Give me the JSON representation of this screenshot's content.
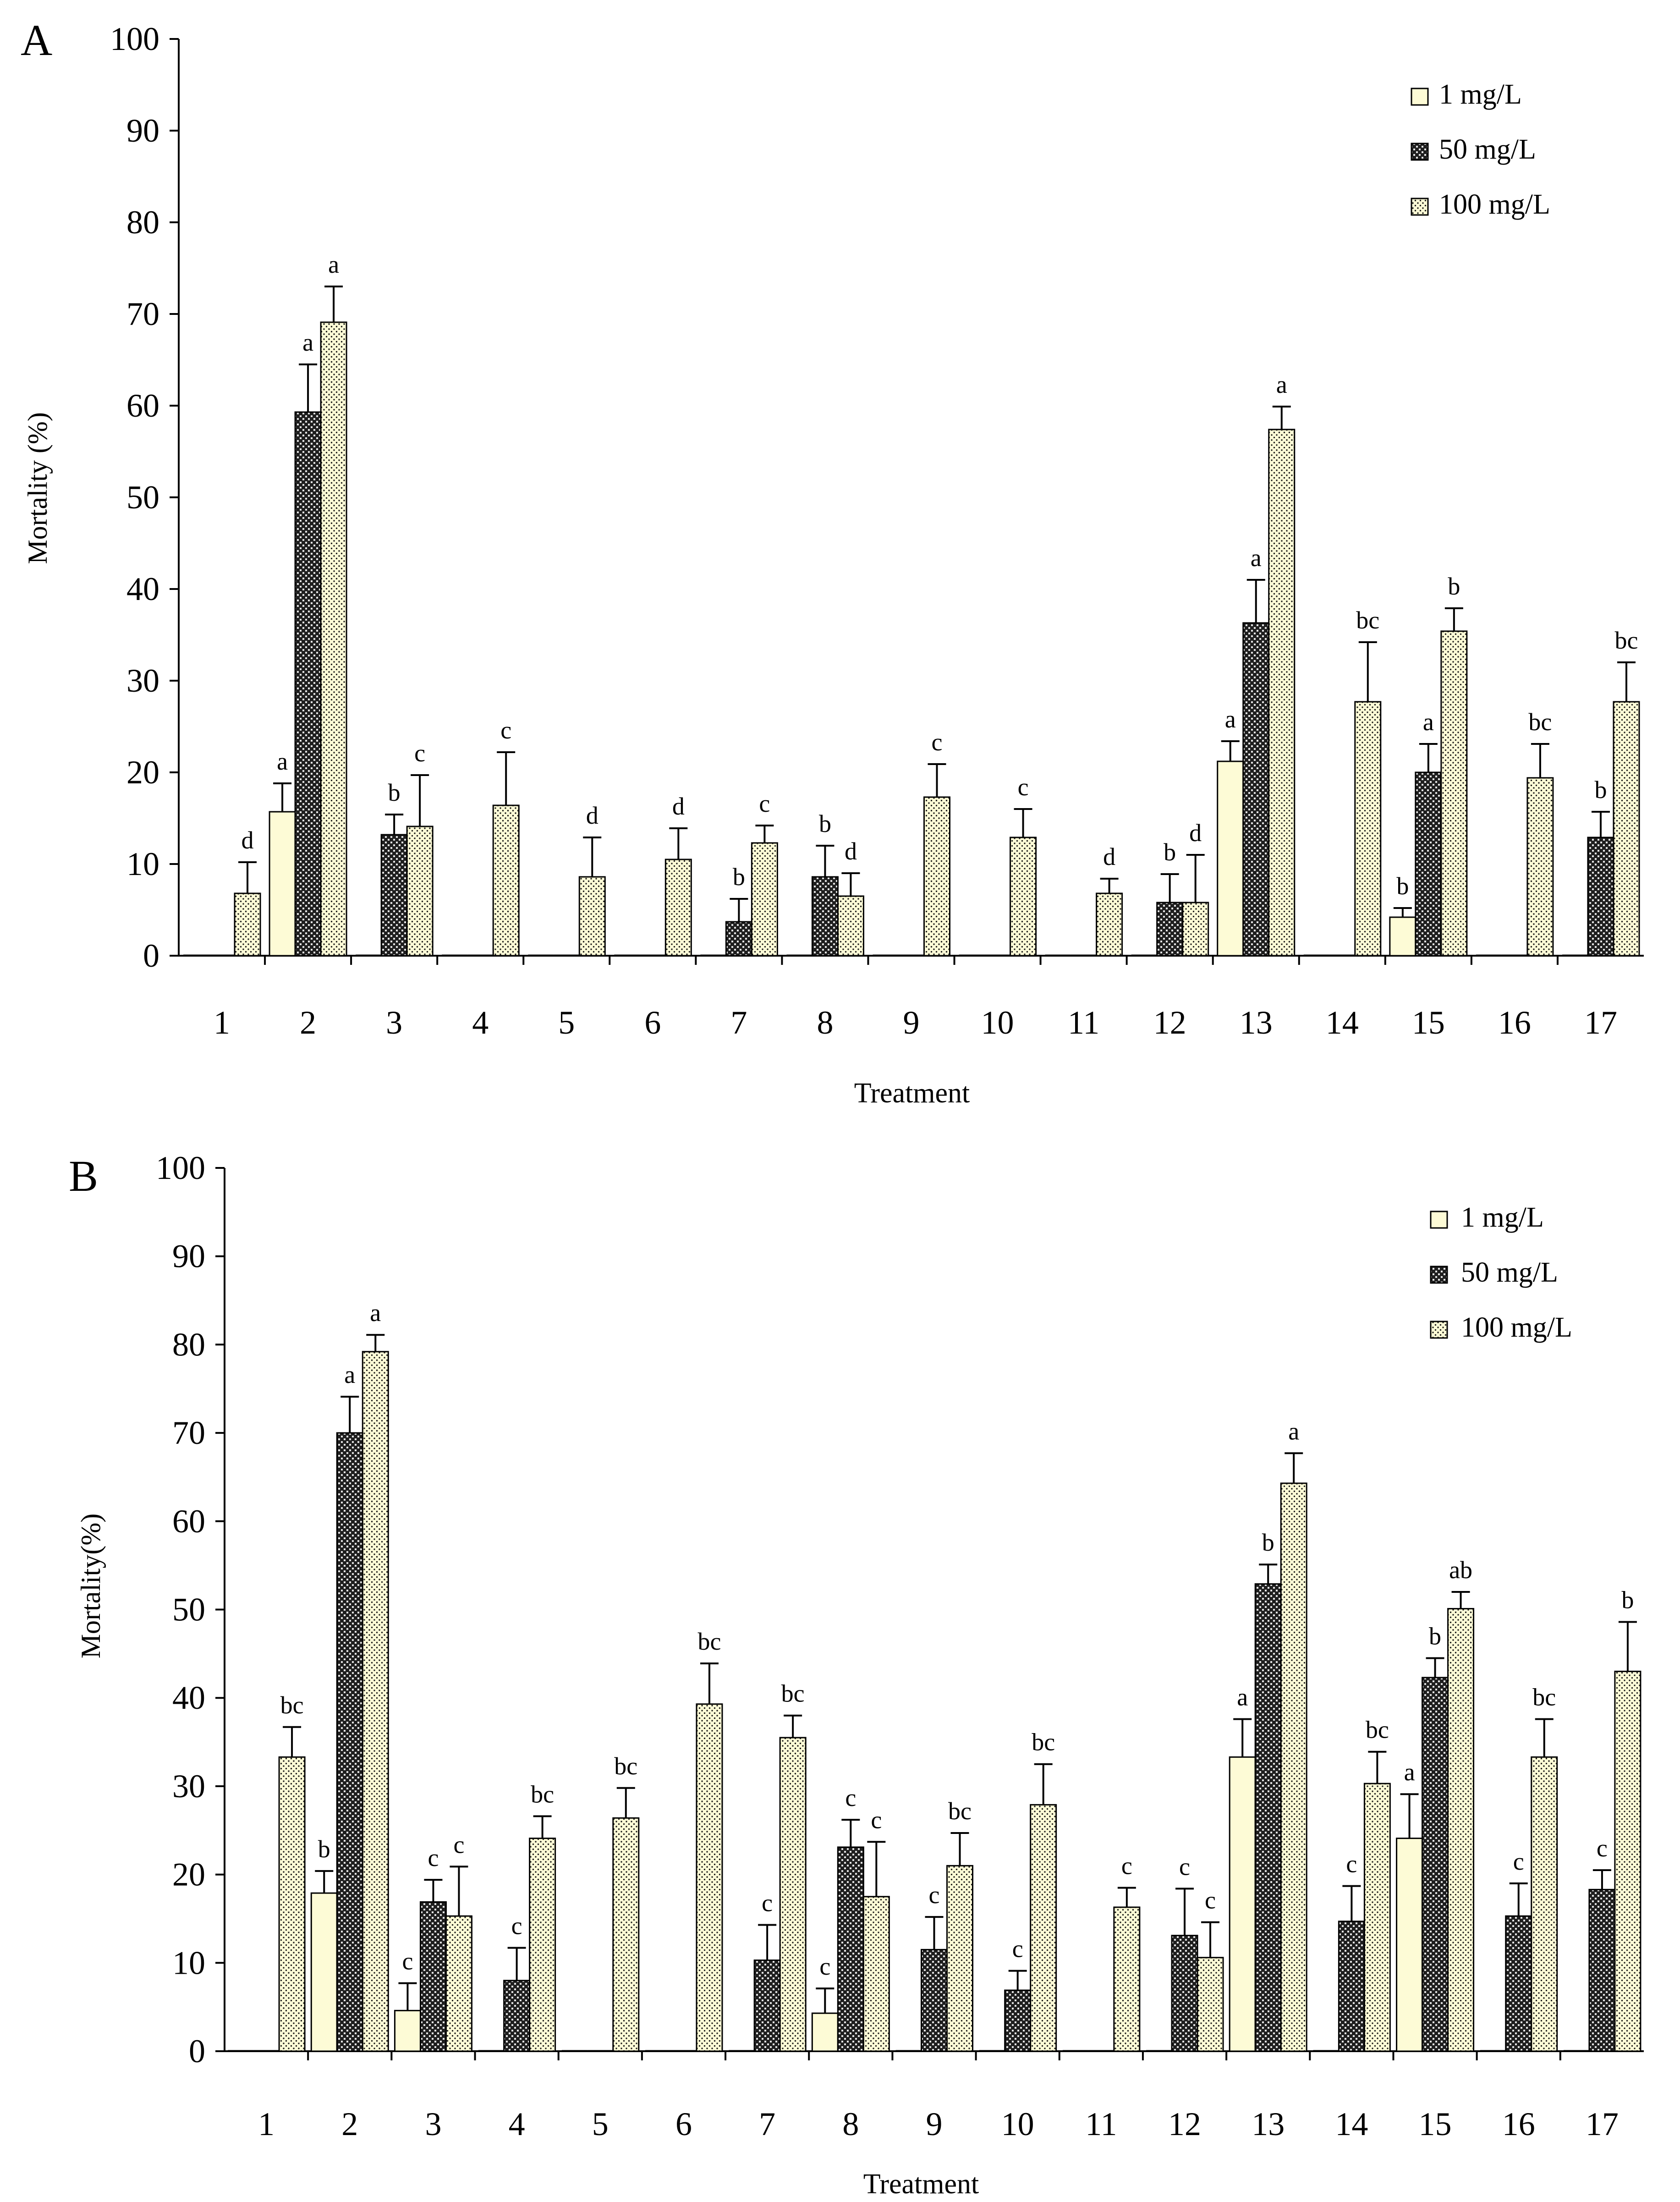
{
  "chart_data": [
    {
      "type": "bar",
      "panel_label": "A",
      "xlabel": "Treatment",
      "ylabel": "Mortality (%)",
      "ylim": [
        0,
        100
      ],
      "yticks": [
        0,
        10,
        20,
        30,
        40,
        50,
        60,
        70,
        80,
        90,
        100
      ],
      "categories": [
        "1",
        "2",
        "3",
        "4",
        "5",
        "6",
        "7",
        "8",
        "9",
        "10",
        "11",
        "12",
        "13",
        "14",
        "15",
        "16",
        "17"
      ],
      "legend": [
        "1 mg/L",
        "50 mg/L",
        "100 mg/L"
      ],
      "legend_position": "top-right",
      "series": [
        {
          "name": "1 mg/L",
          "values": [
            0,
            15.7,
            0,
            0,
            0,
            0,
            0,
            0,
            0,
            0,
            0,
            0,
            21.2,
            0,
            4.2,
            0,
            0
          ],
          "errors": [
            0,
            3.1,
            0,
            0,
            0,
            0,
            0,
            0,
            0,
            0,
            0,
            0,
            2.2,
            0,
            1.0,
            0,
            0
          ],
          "labels": [
            "",
            "a",
            "",
            "",
            "",
            "",
            "",
            "",
            "",
            "",
            "",
            "",
            "a",
            "",
            "b",
            "",
            ""
          ]
        },
        {
          "name": "50 mg/L",
          "values": [
            0,
            59.3,
            13.2,
            0,
            0,
            0,
            3.7,
            8.6,
            0,
            0,
            0,
            5.8,
            36.3,
            0,
            20.0,
            0,
            12.9
          ],
          "errors": [
            0,
            5.2,
            2.2,
            0,
            0,
            0,
            2.5,
            3.4,
            0,
            0,
            0,
            3.1,
            4.7,
            0,
            3.1,
            0,
            2.8
          ],
          "labels": [
            "",
            "a",
            "b",
            "",
            "",
            "",
            "b",
            "b",
            "",
            "",
            "",
            "b",
            "a",
            "",
            "a",
            "",
            "b"
          ]
        },
        {
          "name": "100 mg/L",
          "values": [
            6.8,
            69.1,
            14.1,
            16.4,
            8.6,
            10.5,
            12.3,
            6.5,
            17.3,
            12.9,
            6.8,
            5.8,
            57.4,
            27.7,
            35.4,
            19.4,
            27.7
          ],
          "errors": [
            3.4,
            3.9,
            5.6,
            5.8,
            4.3,
            3.4,
            1.9,
            2.5,
            3.6,
            3.1,
            1.6,
            5.2,
            2.5,
            6.5,
            2.5,
            3.7,
            4.3
          ],
          "labels": [
            "d",
            "a",
            "c",
            "c",
            "d",
            "d",
            "c",
            "d",
            "c",
            "c",
            "d",
            "d",
            "a",
            "bc",
            "b",
            "bc",
            "bc"
          ]
        }
      ]
    },
    {
      "type": "bar",
      "panel_label": "B",
      "xlabel": "Treatment",
      "ylabel": "Mortality(%)",
      "ylim": [
        0,
        100
      ],
      "yticks": [
        0,
        10,
        20,
        30,
        40,
        50,
        60,
        70,
        80,
        90,
        100
      ],
      "categories": [
        "1",
        "2",
        "3",
        "4",
        "5",
        "6",
        "7",
        "8",
        "9",
        "10",
        "11",
        "12",
        "13",
        "14",
        "15",
        "16",
        "17"
      ],
      "legend": [
        "1 mg/L",
        "50 mg/L",
        "100 mg/L"
      ],
      "legend_position": "top-right",
      "series": [
        {
          "name": "1 mg/L",
          "values": [
            0,
            17.9,
            4.6,
            0,
            0,
            0,
            0,
            4.3,
            0,
            0,
            0,
            0,
            33.3,
            0,
            24.1,
            0,
            0
          ],
          "errors": [
            0,
            2.5,
            3.1,
            0,
            0,
            0,
            0,
            2.8,
            0,
            0,
            0,
            0,
            4.3,
            0,
            5.0,
            0,
            0
          ],
          "labels": [
            "",
            "b",
            "c",
            "",
            "",
            "",
            "",
            "c",
            "",
            "",
            "",
            "",
            "a",
            "",
            "a",
            "",
            ""
          ]
        },
        {
          "name": "50 mg/L",
          "values": [
            0,
            70.0,
            16.9,
            8.0,
            0,
            0,
            10.3,
            23.1,
            11.5,
            6.9,
            0,
            13.1,
            52.9,
            14.7,
            42.3,
            15.3,
            18.3
          ],
          "errors": [
            0,
            4.1,
            2.5,
            3.7,
            0,
            0,
            4.0,
            3.1,
            3.7,
            2.2,
            0,
            5.3,
            2.2,
            4.0,
            2.2,
            3.7,
            2.2
          ],
          "labels": [
            "",
            "a",
            "c",
            "c",
            "",
            "",
            "c",
            "c",
            "c",
            "c",
            "",
            "c",
            "b",
            "c",
            "b",
            "c",
            "c"
          ]
        },
        {
          "name": "100 mg/L",
          "values": [
            33.3,
            79.2,
            15.3,
            24.1,
            26.4,
            39.3,
            35.5,
            17.5,
            21.0,
            27.9,
            16.3,
            10.6,
            64.3,
            30.3,
            50.1,
            33.3,
            43.0
          ],
          "errors": [
            3.4,
            1.9,
            5.6,
            2.5,
            3.4,
            4.6,
            2.5,
            6.2,
            3.7,
            4.6,
            2.2,
            4.0,
            3.4,
            3.6,
            1.9,
            4.3,
            5.6
          ],
          "labels": [
            "bc",
            "a",
            "c",
            "bc",
            "bc",
            "bc",
            "bc",
            "c",
            "bc",
            "bc",
            "c",
            "c",
            "a",
            "bc",
            "ab",
            "bc",
            "b"
          ]
        }
      ]
    }
  ]
}
